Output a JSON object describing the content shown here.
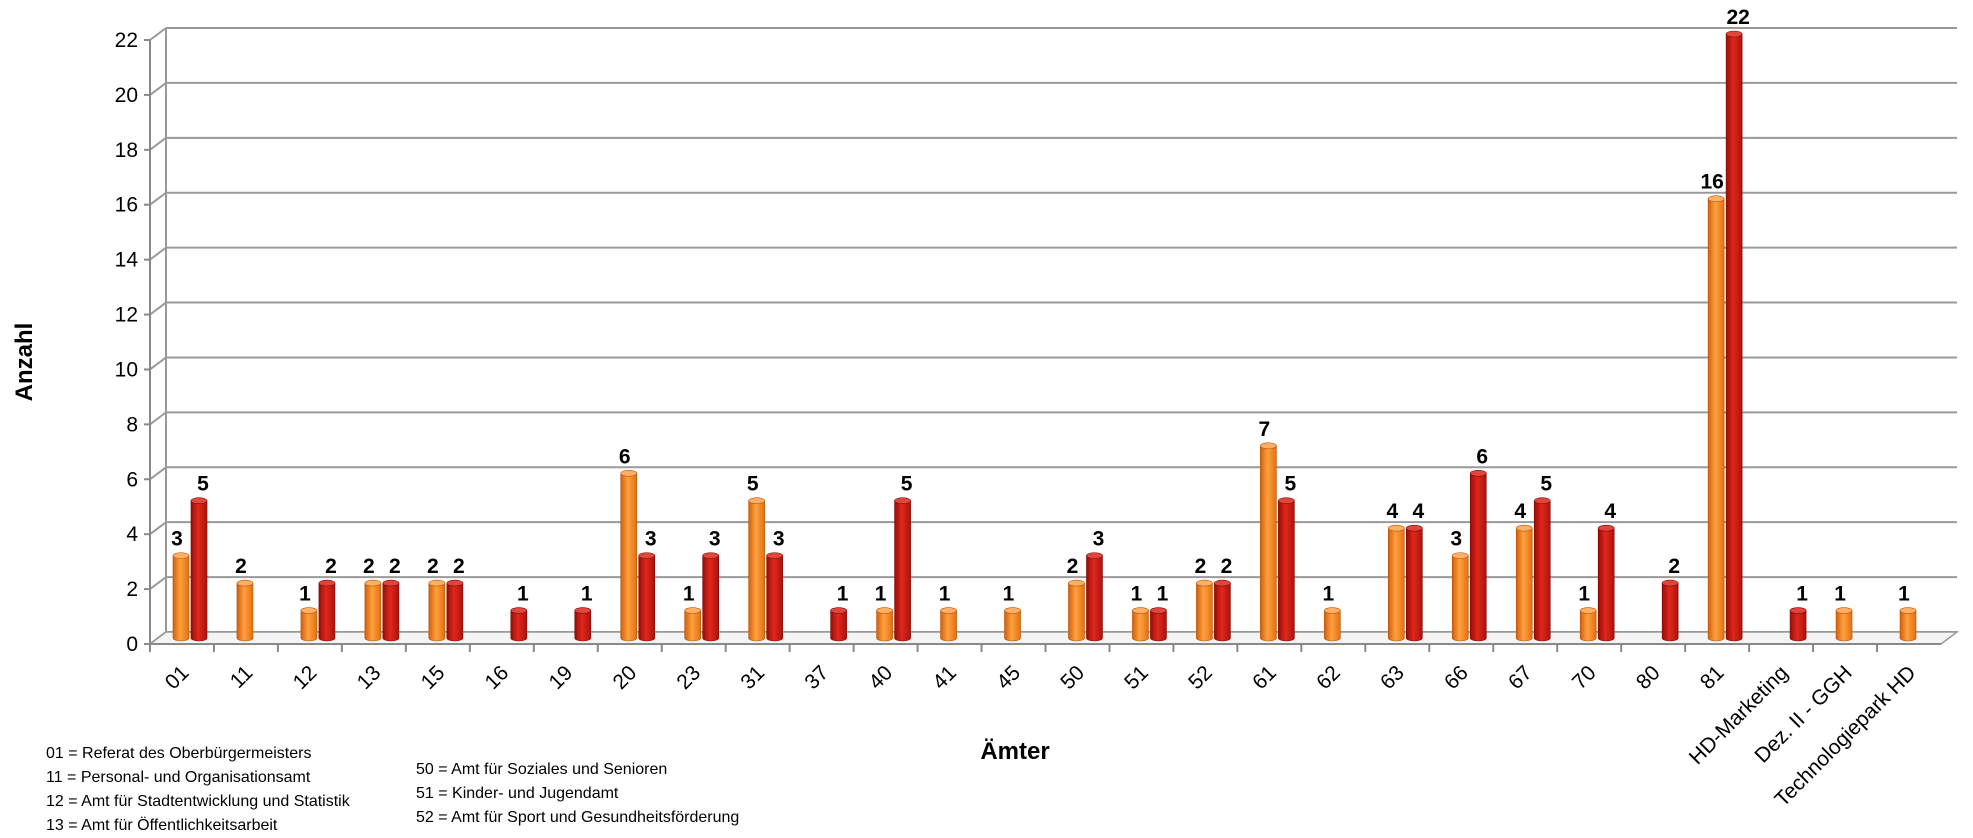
{
  "chart_data": {
    "type": "bar",
    "title": "",
    "xlabel": "Ämter",
    "ylabel": "Anzahl",
    "ylim": [
      0,
      22
    ],
    "yticks": [
      0,
      2,
      4,
      6,
      8,
      10,
      12,
      14,
      16,
      18,
      20,
      22
    ],
    "grid": true,
    "categories": [
      "01",
      "11",
      "12",
      "13",
      "15",
      "16",
      "19",
      "20",
      "23",
      "31",
      "37",
      "40",
      "41",
      "45",
      "50",
      "51",
      "52",
      "61",
      "62",
      "63",
      "66",
      "67",
      "70",
      "80",
      "81",
      "HD-Marketing",
      "Dez. II - GGH",
      "Technologiepark HD"
    ],
    "series": [
      {
        "color": "#f07c1a",
        "values": [
          3,
          2,
          1,
          2,
          2,
          null,
          null,
          6,
          1,
          5,
          null,
          1,
          1,
          1,
          2,
          1,
          2,
          7,
          1,
          4,
          3,
          4,
          1,
          null,
          16,
          null,
          1,
          1
        ]
      },
      {
        "color": "#c41a14",
        "values": [
          5,
          null,
          2,
          2,
          2,
          1,
          1,
          3,
          3,
          3,
          1,
          5,
          null,
          null,
          3,
          1,
          2,
          5,
          null,
          4,
          6,
          5,
          4,
          2,
          22,
          1,
          null,
          null
        ]
      }
    ]
  },
  "legend_left": [
    "01 = Referat des Oberbürgermeisters",
    "11 = Personal- und Organisationsamt",
    "12 = Amt für Stadtentwicklung und Statistik",
    "13 = Amt für Öffentlichkeitsarbeit"
  ],
  "legend_right": [
    "50 = Amt für Soziales und Senioren",
    "51 = Kinder- und Jugendamt",
    "52 = Amt für Sport und Gesundheitsförderung"
  ]
}
